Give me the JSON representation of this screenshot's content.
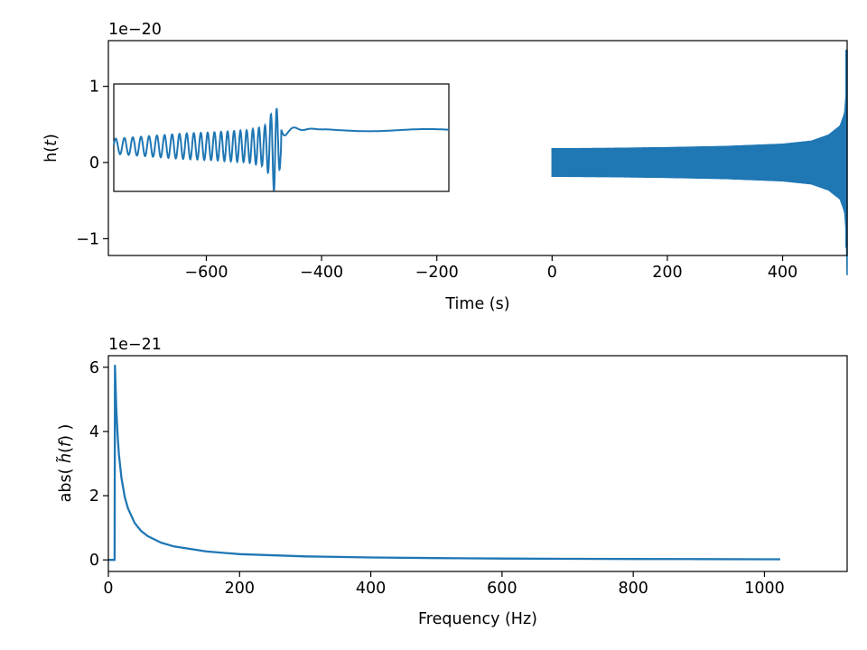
{
  "colors": {
    "series": "#1f77b4",
    "frame": "#000000",
    "background": "#ffffff"
  },
  "chart_data": [
    {
      "type": "line",
      "name": "time-domain-strain",
      "title": "",
      "xlabel": "Time (s)",
      "ylabel": "h(t)",
      "ylabel_prefix": "h(",
      "ylabel_var": "t",
      "ylabel_suffix": ")",
      "offset_text": "1e−20",
      "xlim": [
        -770,
        512
      ],
      "ylim": [
        -1.22,
        1.6
      ],
      "xticks": [
        -600,
        -400,
        -200,
        0,
        200,
        400
      ],
      "xtick_labels": [
        "−600",
        "−400",
        "−200",
        "0",
        "200",
        "400"
      ],
      "yticks": [
        -1,
        0,
        1
      ],
      "ytick_labels": [
        "−1",
        "0",
        "1"
      ],
      "grid": false,
      "series": [
        {
          "kind": "oscillation-envelope",
          "x_start": 0,
          "x_end": 512,
          "envelope": [
            [
              0,
              0.18
            ],
            [
              100,
              0.185
            ],
            [
              200,
              0.195
            ],
            [
              300,
              0.21
            ],
            [
              400,
              0.24
            ],
            [
              450,
              0.28
            ],
            [
              480,
              0.36
            ],
            [
              500,
              0.48
            ],
            [
              508,
              0.65
            ],
            [
              511,
              1.0
            ],
            [
              512,
              1.48
            ]
          ],
          "min_at_end": -1.12
        }
      ],
      "inset": {
        "description_values": "zoom on merger",
        "trace": [
          [
            0,
            0.15
          ],
          [
            0.1,
            0.2
          ],
          [
            0.2,
            0.25
          ],
          [
            0.3,
            0.28
          ],
          [
            0.4,
            0.32
          ],
          [
            0.45,
            0.4
          ],
          [
            0.47,
            0.65
          ],
          [
            0.48,
            0.95
          ],
          [
            0.5,
            0.3
          ],
          [
            0.52,
            0.2
          ],
          [
            0.6,
            0.19
          ],
          [
            0.7,
            0.17
          ],
          [
            0.8,
            0.19
          ],
          [
            0.9,
            0.18
          ],
          [
            1.0,
            0.16
          ]
        ]
      }
    },
    {
      "type": "line",
      "name": "frequency-domain-amplitude",
      "title": "",
      "xlabel": "Frequency (Hz)",
      "ylabel": "abs( h̃(f) )",
      "ylabel_prefix": "abs( ",
      "ylabel_var": "h̃",
      "ylabel_mid": "(",
      "ylabel_var2": "f",
      "ylabel_suffix": ") )",
      "offset_text": "1e−21",
      "xlim": [
        0,
        1126
      ],
      "ylim": [
        -0.36,
        6.36
      ],
      "xticks": [
        0,
        200,
        400,
        600,
        800,
        1000
      ],
      "xtick_labels": [
        "0",
        "200",
        "400",
        "600",
        "800",
        "1000"
      ],
      "yticks": [
        0,
        2,
        4,
        6
      ],
      "ytick_labels": [
        "0",
        "2",
        "4",
        "6"
      ],
      "grid": false,
      "series": [
        {
          "x": [
            0,
            9.5,
            10,
            11,
            12,
            14,
            16,
            20,
            25,
            30,
            40,
            50,
            60,
            80,
            100,
            150,
            200,
            300,
            400,
            500,
            600,
            700,
            800,
            900,
            1000,
            1024
          ],
          "y": [
            0,
            0,
            6.05,
            5.4,
            4.75,
            3.9,
            3.3,
            2.55,
            1.95,
            1.6,
            1.15,
            0.9,
            0.74,
            0.54,
            0.42,
            0.26,
            0.18,
            0.11,
            0.075,
            0.055,
            0.042,
            0.034,
            0.028,
            0.024,
            0.02,
            0.02
          ]
        }
      ]
    }
  ]
}
